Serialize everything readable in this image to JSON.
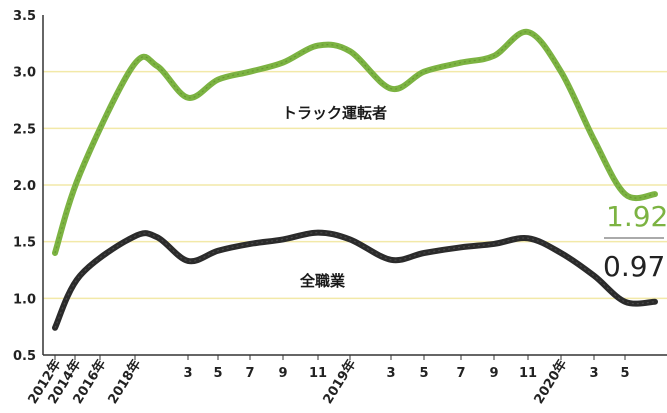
{
  "chart_data": {
    "type": "line",
    "ylim": [
      0.5,
      3.5
    ],
    "y_ticks": [
      "0.5",
      "1.0",
      "1.5",
      "2.0",
      "2.5",
      "3.0",
      "3.5"
    ],
    "grid": true,
    "x_labels": [
      "2012年",
      "2014年",
      "2016年",
      "2018年",
      "3",
      "5",
      "7",
      "9",
      "11",
      "2019年",
      "3",
      "5",
      "7",
      "9",
      "11",
      "2020年",
      "3",
      "5"
    ],
    "x": [
      "2012",
      "2014",
      "2016",
      "2018-01",
      "2018-03",
      "2018-05",
      "2018-07",
      "2018-09",
      "2018-11",
      "2019-01",
      "2019-03",
      "2019-05",
      "2019-07",
      "2019-09",
      "2019-11",
      "2020-01",
      "2020-03",
      "2020-05",
      "2020-06"
    ],
    "series": [
      {
        "name": "トラック運転者",
        "color": "#7cb342",
        "values": [
          1.4,
          2.1,
          3.05,
          3.05,
          2.77,
          2.93,
          3.0,
          3.08,
          3.23,
          3.18,
          2.85,
          3.0,
          3.08,
          3.14,
          3.35,
          3.0,
          2.4,
          1.92,
          1.92
        ]
      },
      {
        "name": "全職業",
        "color": "#2b2b2b",
        "values": [
          0.74,
          1.2,
          1.54,
          1.54,
          1.33,
          1.42,
          1.48,
          1.52,
          1.58,
          1.52,
          1.34,
          1.4,
          1.45,
          1.48,
          1.53,
          1.4,
          1.2,
          0.97,
          0.97
        ]
      }
    ],
    "end_labels": [
      "1.92",
      "0.97"
    ]
  },
  "colors": {
    "grid": "#f2e9a8",
    "axis": "#333333"
  }
}
